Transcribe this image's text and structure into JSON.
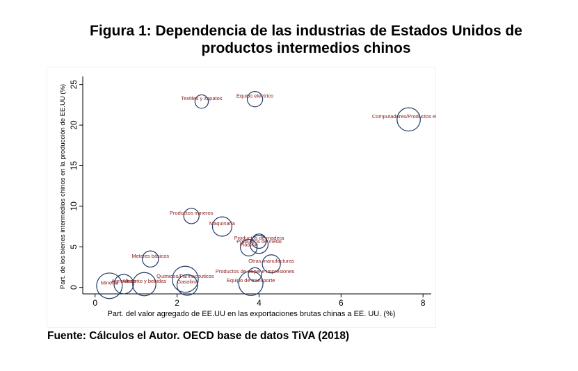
{
  "header": {
    "title_line1": "Figura 1: Dependencia de las industrias de Estados Unidos de",
    "title_line2": "productos intermedios chinos"
  },
  "footer": {
    "source": "Fuente: Cálculos el Autor. OECD base de datos TiVA (2018)"
  },
  "chart_data": {
    "type": "scatter",
    "title": "Figura 1: Dependencia de las industrias de Estados Unidos de productos intermedios chinos",
    "xlabel": "Part. del valor agregado de EE.UU en las exportaciones brutas chinas a EE. UU. (%)",
    "ylabel": "Part. de los bienes intermedios chinos en la producción de EE.UU (%)",
    "xlim": [
      -0.3,
      8.2
    ],
    "ylim": [
      -0.8,
      26
    ],
    "xticks": [
      0,
      2,
      4,
      6,
      8
    ],
    "yticks": [
      0,
      5,
      10,
      15,
      20,
      25
    ],
    "grid": false,
    "marker": "hollow-circle-sized-by-weight",
    "colors": {
      "marker": "#1f3b66",
      "label": "#8b1a1a",
      "axis": "#000000"
    },
    "points": [
      {
        "label": "Textiles y zapatos",
        "x": 2.6,
        "y": 22.9,
        "size": 0.35
      },
      {
        "label": "Equipo electrico",
        "x": 3.9,
        "y": 23.2,
        "size": 0.55
      },
      {
        "label": "Computadores/Productos electr",
        "x": 7.65,
        "y": 20.7,
        "size": 1.8
      },
      {
        "label": "Productos mineros",
        "x": 2.35,
        "y": 8.8,
        "size": 0.55
      },
      {
        "label": "Maquinaria",
        "x": 3.1,
        "y": 7.5,
        "size": 1.1
      },
      {
        "label": "Productos de madera",
        "x": 4.0,
        "y": 5.7,
        "size": 0.45
      },
      {
        "label": "Productos de metal",
        "x": 4.0,
        "y": 5.3,
        "size": 0.9
      },
      {
        "label": "Plastico",
        "x": 3.75,
        "y": 4.9,
        "size": 0.7
      },
      {
        "label": "Metales básicos",
        "x": 1.35,
        "y": 3.5,
        "size": 0.65
      },
      {
        "label": "Otras manufacturas",
        "x": 4.3,
        "y": 2.9,
        "size": 0.9
      },
      {
        "label": "Productos de papel e impresiones",
        "x": 3.9,
        "y": 1.6,
        "size": 0.35
      },
      {
        "label": "Quimicos/Farmaceuticos",
        "x": 2.2,
        "y": 1.0,
        "size": 2.4
      },
      {
        "label": "Equipo de transporte",
        "x": 3.8,
        "y": 0.5,
        "size": 2.0
      },
      {
        "label": "Minería",
        "x": 0.35,
        "y": 0.2,
        "size": 2.3
      },
      {
        "label": "Agricultura",
        "x": 0.7,
        "y": 0.4,
        "size": 1.1
      },
      {
        "label": "Alimento y bebidas",
        "x": 1.2,
        "y": 0.4,
        "size": 1.8
      },
      {
        "label": "Gasolina",
        "x": 2.25,
        "y": 0.3,
        "size": 1.3
      }
    ]
  }
}
